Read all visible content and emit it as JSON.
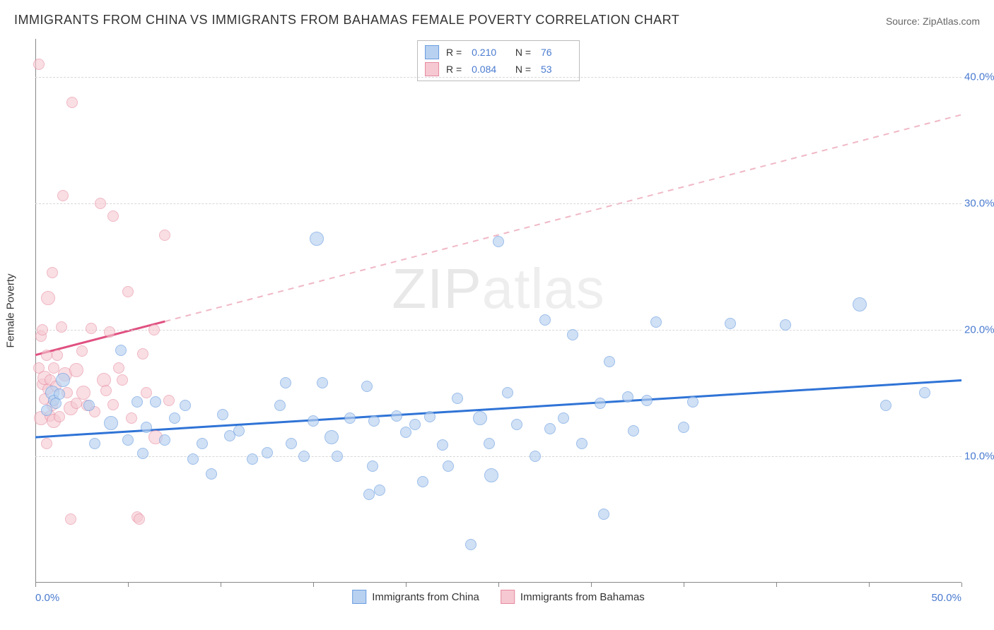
{
  "title": "IMMIGRANTS FROM CHINA VS IMMIGRANTS FROM BAHAMAS FEMALE POVERTY CORRELATION CHART",
  "source": "Source: ZipAtlas.com",
  "watermark_a": "ZIP",
  "watermark_b": "atlas",
  "chart": {
    "type": "scatter",
    "background_color": "#ffffff",
    "grid_color": "#d8d8d8",
    "axis_color": "#888888",
    "xlim": [
      0,
      50
    ],
    "ylim": [
      0,
      43
    ],
    "xtick_positions": [
      0,
      5,
      10,
      15,
      20,
      25,
      30,
      35,
      40,
      45,
      50
    ],
    "xtick_labels": {
      "left": "0.0%",
      "right": "50.0%"
    },
    "ytick_positions": [
      10,
      20,
      30,
      40
    ],
    "ytick_labels": [
      "10.0%",
      "20.0%",
      "30.0%",
      "40.0%"
    ],
    "yaxis_title": "Female Poverty",
    "label_color": "#4a7bd0",
    "label_fontsize": 15,
    "marker_radius_small": 8,
    "marker_radius_large": 10,
    "series": [
      {
        "name": "Immigrants from China",
        "fill": "#b8d1f0",
        "stroke": "#6a9de0",
        "fill_opacity": 0.65,
        "trend_color": "#2f73d6",
        "trend_dash_color": "#2f73d6",
        "R": "0.210",
        "N": "76",
        "trend": {
          "x1": 0,
          "y1": 11.5,
          "x2": 50,
          "y2": 16.0,
          "solid_until_x": 50
        },
        "points": [
          [
            0.6,
            13.6
          ],
          [
            0.9,
            15.0
          ],
          [
            1.0,
            14.4
          ],
          [
            1.3,
            14.9
          ],
          [
            1.5,
            16.0
          ],
          [
            2.9,
            14.0
          ],
          [
            3.2,
            11.0
          ],
          [
            4.1,
            12.6
          ],
          [
            4.6,
            18.4
          ],
          [
            5.0,
            11.3
          ],
          [
            5.5,
            14.3
          ],
          [
            5.8,
            10.2
          ],
          [
            6.0,
            12.3
          ],
          [
            6.5,
            14.3
          ],
          [
            7.0,
            11.3
          ],
          [
            7.5,
            13.0
          ],
          [
            8.1,
            14.0
          ],
          [
            8.5,
            9.8
          ],
          [
            9.0,
            11.0
          ],
          [
            9.5,
            8.6
          ],
          [
            10.1,
            13.3
          ],
          [
            10.5,
            11.6
          ],
          [
            11.0,
            12.0
          ],
          [
            11.7,
            9.8
          ],
          [
            12.5,
            10.3
          ],
          [
            13.2,
            14.0
          ],
          [
            13.5,
            15.8
          ],
          [
            13.8,
            11.0
          ],
          [
            14.5,
            10.0
          ],
          [
            15.0,
            12.8
          ],
          [
            15.2,
            27.2
          ],
          [
            15.5,
            15.8
          ],
          [
            16.0,
            11.5
          ],
          [
            16.3,
            10.0
          ],
          [
            17.0,
            13.0
          ],
          [
            17.9,
            15.5
          ],
          [
            18.0,
            7.0
          ],
          [
            18.2,
            9.2
          ],
          [
            18.3,
            12.8
          ],
          [
            18.6,
            7.3
          ],
          [
            19.5,
            13.2
          ],
          [
            20.0,
            11.9
          ],
          [
            20.5,
            12.5
          ],
          [
            20.9,
            8.0
          ],
          [
            21.3,
            13.1
          ],
          [
            22.0,
            10.9
          ],
          [
            22.3,
            9.2
          ],
          [
            22.8,
            14.6
          ],
          [
            23.5,
            3.0
          ],
          [
            24.0,
            13.0
          ],
          [
            24.5,
            11.0
          ],
          [
            24.6,
            8.5
          ],
          [
            25.0,
            27.0
          ],
          [
            25.5,
            15.0
          ],
          [
            26.0,
            12.5
          ],
          [
            27.0,
            10.0
          ],
          [
            27.5,
            20.8
          ],
          [
            27.8,
            12.2
          ],
          [
            28.5,
            13.0
          ],
          [
            29.0,
            19.6
          ],
          [
            29.5,
            11.0
          ],
          [
            30.5,
            14.2
          ],
          [
            30.7,
            5.4
          ],
          [
            31.0,
            17.5
          ],
          [
            32.0,
            14.7
          ],
          [
            32.3,
            12.0
          ],
          [
            33.0,
            14.4
          ],
          [
            33.5,
            20.6
          ],
          [
            35.0,
            12.3
          ],
          [
            35.5,
            14.3
          ],
          [
            37.5,
            20.5
          ],
          [
            40.5,
            20.4
          ],
          [
            44.5,
            22.0
          ],
          [
            45.9,
            14.0
          ],
          [
            48.0,
            15.0
          ],
          [
            1.1,
            14.2
          ]
        ]
      },
      {
        "name": "Immigrants from Bahamas",
        "fill": "#f6c9d2",
        "stroke": "#e68aa0",
        "fill_opacity": 0.6,
        "trend_color": "#e05080",
        "trend_dash_color": "#f0b8c6",
        "R": "0.084",
        "N": "53",
        "trend": {
          "x1": 0,
          "y1": 18.0,
          "x2": 50,
          "y2": 37.0,
          "solid_until_x": 7
        },
        "points": [
          [
            0.2,
            41.0
          ],
          [
            0.2,
            17.0
          ],
          [
            0.3,
            19.5
          ],
          [
            0.3,
            13.0
          ],
          [
            0.4,
            15.7
          ],
          [
            0.4,
            20.0
          ],
          [
            0.5,
            16.2
          ],
          [
            0.5,
            14.5
          ],
          [
            0.6,
            11.0
          ],
          [
            0.6,
            18.0
          ],
          [
            0.7,
            15.3
          ],
          [
            0.7,
            22.5
          ],
          [
            0.8,
            13.2
          ],
          [
            0.8,
            16.0
          ],
          [
            0.9,
            24.5
          ],
          [
            0.9,
            14.0
          ],
          [
            1.0,
            17.0
          ],
          [
            1.0,
            12.8
          ],
          [
            1.1,
            15.5
          ],
          [
            1.2,
            18.0
          ],
          [
            1.3,
            13.1
          ],
          [
            1.4,
            20.2
          ],
          [
            1.5,
            30.6
          ],
          [
            1.6,
            16.5
          ],
          [
            1.7,
            15.0
          ],
          [
            1.9,
            13.8
          ],
          [
            1.9,
            5.0
          ],
          [
            2.0,
            38.0
          ],
          [
            2.2,
            14.2
          ],
          [
            2.2,
            16.8
          ],
          [
            2.5,
            18.3
          ],
          [
            2.6,
            15.0
          ],
          [
            2.8,
            14.0
          ],
          [
            3.0,
            20.1
          ],
          [
            3.2,
            13.5
          ],
          [
            3.5,
            30.0
          ],
          [
            3.7,
            16.0
          ],
          [
            3.8,
            15.2
          ],
          [
            4.0,
            19.8
          ],
          [
            4.2,
            29.0
          ],
          [
            4.2,
            14.1
          ],
          [
            4.5,
            17.0
          ],
          [
            4.7,
            16.0
          ],
          [
            5.0,
            23.0
          ],
          [
            5.2,
            13.0
          ],
          [
            5.5,
            5.2
          ],
          [
            5.6,
            5.0
          ],
          [
            5.8,
            18.1
          ],
          [
            6.0,
            15.0
          ],
          [
            6.4,
            20.0
          ],
          [
            6.5,
            11.5
          ],
          [
            7.0,
            27.5
          ],
          [
            7.2,
            14.4
          ]
        ]
      }
    ],
    "legend_bottom": [
      {
        "label": "Immigrants from China",
        "fill": "#b8d1f0",
        "stroke": "#6a9de0"
      },
      {
        "label": "Immigrants from Bahamas",
        "fill": "#f6c9d2",
        "stroke": "#e68aa0"
      }
    ]
  }
}
